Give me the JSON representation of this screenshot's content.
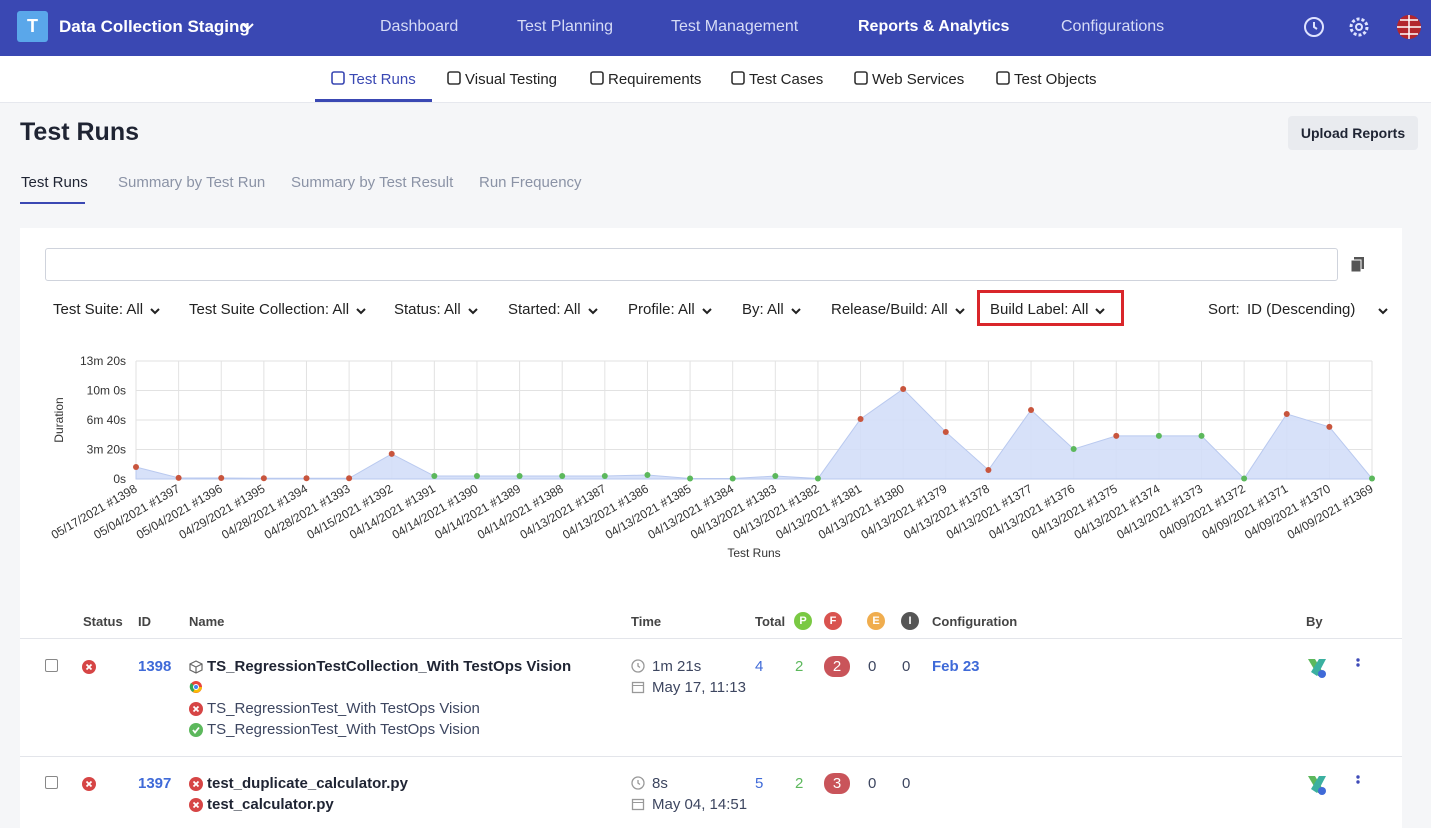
{
  "topbar": {
    "project": "Data Collection Staging",
    "nav": [
      "Dashboard",
      "Test Planning",
      "Test Management",
      "Reports & Analytics",
      "Configurations"
    ]
  },
  "subnav": [
    "Test Runs",
    "Visual Testing",
    "Requirements",
    "Test Cases",
    "Web Services",
    "Test Objects"
  ],
  "page": {
    "title": "Test Runs",
    "upload_button": "Upload Reports"
  },
  "tabs": [
    "Test Runs",
    "Summary by Test Run",
    "Summary by Test Result",
    "Run Frequency"
  ],
  "filters": [
    "Test Suite: All",
    "Test Suite Collection: All",
    "Status: All",
    "Started: All",
    "Profile: All",
    "By: All",
    "Release/Build: All",
    "Build Label: All"
  ],
  "sort": {
    "label": "Sort:",
    "value": "ID (Descending)"
  },
  "chart_data": {
    "type": "area",
    "x_label": "Test Runs",
    "y_label": "Duration",
    "categories": [
      "05/17/2021 #1398",
      "05/04/2021 #1397",
      "05/04/2021 #1396",
      "04/29/2021 #1395",
      "04/28/2021 #1394",
      "04/28/2021 #1393",
      "04/15/2021 #1392",
      "04/14/2021 #1391",
      "04/14/2021 #1390",
      "04/14/2021 #1389",
      "04/14/2021 #1388",
      "04/13/2021 #1387",
      "04/13/2021 #1386",
      "04/13/2021 #1385",
      "04/13/2021 #1384",
      "04/13/2021 #1383",
      "04/13/2021 #1382",
      "04/13/2021 #1381",
      "04/13/2021 #1380",
      "04/13/2021 #1379",
      "04/13/2021 #1378",
      "04/13/2021 #1377",
      "04/13/2021 #1376",
      "04/13/2021 #1375",
      "04/13/2021 #1374",
      "04/13/2021 #1373",
      "04/09/2021 #1372",
      "04/09/2021 #1371",
      "04/09/2021 #1370",
      "04/09/2021 #1369"
    ],
    "values": [
      81,
      8,
      7,
      5,
      5,
      5,
      170,
      20,
      20,
      20,
      20,
      20,
      27,
      3,
      3,
      20,
      3,
      407,
      610,
      319,
      61,
      468,
      203,
      292,
      292,
      292,
      3,
      441,
      353,
      3
    ],
    "point_colors": [
      "#c8553d",
      "#c8553d",
      "#c8553d",
      "#c8553d",
      "#c8553d",
      "#c8553d",
      "#c8553d",
      "#5cb85c",
      "#5cb85c",
      "#5cb85c",
      "#5cb85c",
      "#5cb85c",
      "#5cb85c",
      "#5cb85c",
      "#5cb85c",
      "#5cb85c",
      "#5cb85c",
      "#c8553d",
      "#c8553d",
      "#c8553d",
      "#c8553d",
      "#c8553d",
      "#5cb85c",
      "#c8553d",
      "#5cb85c",
      "#5cb85c",
      "#5cb85c",
      "#c8553d",
      "#c8553d",
      "#5cb85c"
    ],
    "color": "#d3def8",
    "ylim": [
      0,
      800
    ],
    "yticks": [
      {
        "value": 0,
        "label": "0s"
      },
      {
        "value": 200,
        "label": "3m 20s"
      },
      {
        "value": 400,
        "label": "6m 40s"
      },
      {
        "value": 600,
        "label": "10m 0s"
      },
      {
        "value": 800,
        "label": "13m 20s"
      }
    ],
    "grid": true
  },
  "table": {
    "headers": [
      "Status",
      "ID",
      "Name",
      "Time",
      "Total",
      "P",
      "F",
      "E",
      "I",
      "Configuration",
      "By"
    ],
    "rows": [
      {
        "status": "failed",
        "id": "1398",
        "title": "TS_RegressionTestCollection_With TestOps Vision",
        "items": [
          {
            "name": "TS_RegressionTest_With TestOps Vision",
            "status": "failed"
          },
          {
            "name": "TS_RegressionTest_With TestOps Vision",
            "status": "passed"
          }
        ],
        "duration": "1m 21s",
        "started": "May 17, 11:13",
        "total": 4,
        "passed": 2,
        "failed": 2,
        "error": 0,
        "incomplete": 0,
        "configuration": "Feb 23"
      },
      {
        "status": "failed",
        "id": "1397",
        "items": [
          {
            "name": "test_duplicate_calculator.py",
            "status": "failed"
          },
          {
            "name": "test_calculator.py",
            "status": "failed"
          }
        ],
        "duration": "8s",
        "started": "May 04, 14:51",
        "total": 5,
        "passed": 2,
        "failed": 3,
        "error": 0,
        "incomplete": 0
      }
    ]
  }
}
